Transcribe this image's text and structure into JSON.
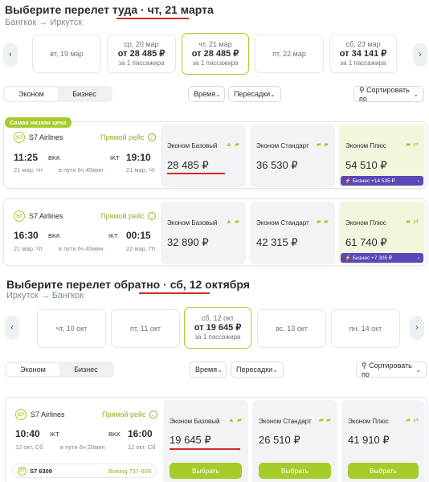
{
  "outbound": {
    "title": "Выберите перелет туда",
    "date": "чт, 21 марта",
    "route": "Бангкок → Иркутск",
    "dates": [
      {
        "label": "вт, 19 мар",
        "price": "",
        "note": ""
      },
      {
        "label": "ср, 20 мар",
        "price": "от 28 485 ₽",
        "note": "за 1 пассажира"
      },
      {
        "label": "чт, 21 мар",
        "price": "от 28 485 ₽",
        "note": "за 1 пассажира"
      },
      {
        "label": "пт, 22 мар",
        "price": "",
        "note": ""
      },
      {
        "label": "сб, 23 мар",
        "price": "от 34 141 ₽",
        "note": "за 1 пассажира"
      }
    ],
    "flights": [
      {
        "badge": "Самая низкая цена",
        "airline": "S7 Airlines",
        "direct": "Прямой рейс",
        "dep_time": "11:25",
        "dep_code": "BKK",
        "dep_date": "21 мар, Чт",
        "arr_time": "19:10",
        "arr_code": "IKT",
        "arr_date": "21 мар, Чт",
        "duration": "в пути 6ч 45мин",
        "fares": [
          {
            "name": "Эконом Базовый",
            "price": "28 485 ₽"
          },
          {
            "name": "Эконом Стандарт",
            "price": "36 530 ₽"
          },
          {
            "name": "Эконом Плюс",
            "price": "54 510 ₽",
            "upsell": "Бизнес +14 535 ₽"
          }
        ]
      },
      {
        "airline": "S7 Airlines",
        "direct": "Прямой рейс",
        "dep_time": "16:30",
        "dep_code": "BKK",
        "dep_date": "21 мар, Чт",
        "arr_time": "00:15",
        "arr_code": "IKT",
        "arr_date": "22 мар, Пт",
        "duration": "в пути 6ч 45мин",
        "fares": [
          {
            "name": "Эконом Базовый",
            "price": "32 890 ₽"
          },
          {
            "name": "Эконом Стандарт",
            "price": "42 315 ₽"
          },
          {
            "name": "Эконом Плюс",
            "price": "61 740 ₽",
            "upsell": "Бизнес +7 305 ₽"
          }
        ]
      }
    ]
  },
  "return": {
    "title": "Выберите перелет обратно",
    "date": "сб, 12 октября",
    "route": "Иркутск → Бангкок",
    "dates": [
      {
        "label": "чт, 10 окт",
        "price": "",
        "note": ""
      },
      {
        "label": "пт, 11 окт",
        "price": "",
        "note": ""
      },
      {
        "label": "сб, 12 окт",
        "price": "от 19 645 ₽",
        "note": "за 1 пассажира"
      },
      {
        "label": "вс, 13 окт",
        "price": "",
        "note": ""
      },
      {
        "label": "пн, 14 окт",
        "price": "",
        "note": ""
      }
    ],
    "flight": {
      "airline": "S7 Airlines",
      "direct": "Прямой рейс",
      "dep_time": "10:40",
      "dep_code": "IKT",
      "dep_date": "12 окт, Сб",
      "arr_time": "16:00",
      "arr_code": "BKK",
      "arr_date": "12 окт, Сб",
      "duration": "в пути 6ч 20мин",
      "flight_no": "S7 6309",
      "aircraft": "Boeing 737-800",
      "fares": [
        {
          "name": "Эконом Базовый",
          "price": "19 645 ₽"
        },
        {
          "name": "Эконом Стандарт",
          "price": "26 510 ₽"
        },
        {
          "name": "Эконом Плюс",
          "price": "41 910 ₽"
        }
      ],
      "choose_label": "Выбрать"
    }
  },
  "filters": {
    "economy": "Эконом",
    "business": "Бизнес",
    "time": "Время",
    "transfers": "Пересадки",
    "sort": "Сортировать по"
  },
  "icons": {
    "prev": "chevron-left-icon",
    "next": "chevron-right-icon",
    "bag": "bag-icon",
    "exchange": "exchange-icon",
    "bolt": "bolt-icon"
  },
  "colors": {
    "accent": "#a6cc2a",
    "upsell": "#5d46b8",
    "highlight_line": "#d42a2a"
  }
}
